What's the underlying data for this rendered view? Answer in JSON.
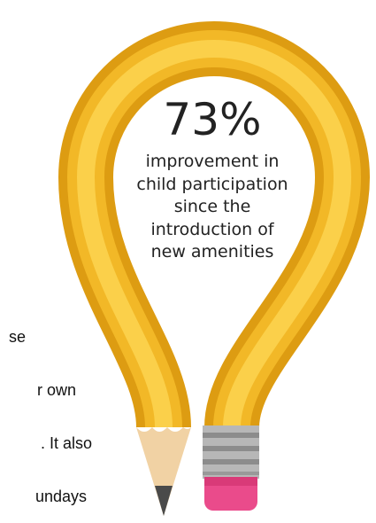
{
  "side_text": [
    "se",
    "r own",
    ". It also",
    "undays"
  ],
  "stat": {
    "value": "73%",
    "caption": [
      "improvement in",
      "child participation",
      "since the",
      "introduction of",
      "new amenities"
    ]
  }
}
